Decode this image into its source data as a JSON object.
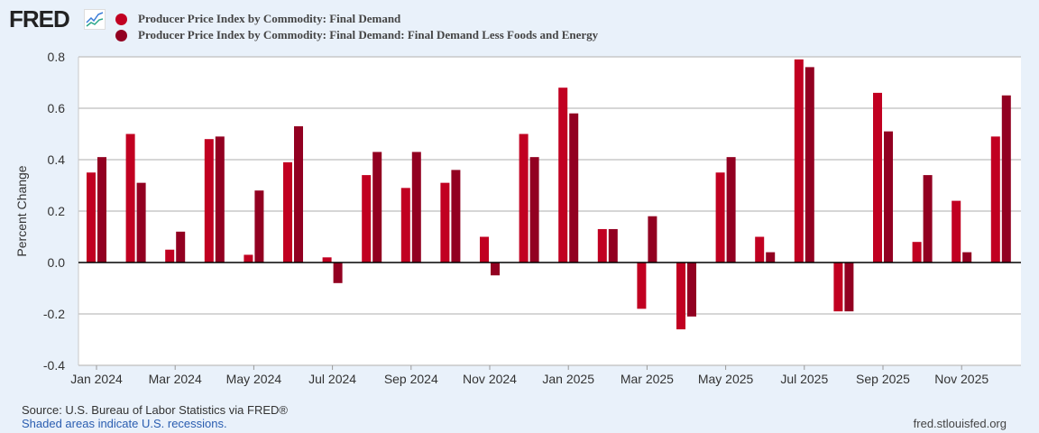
{
  "header": {
    "logo": "FRED"
  },
  "chart_data": {
    "type": "bar",
    "ylabel": "Percent Change",
    "ylim": [
      -0.4,
      0.8
    ],
    "yticks": [
      "0.8",
      "0.6",
      "0.4",
      "0.2",
      "0.0",
      "-0.2",
      "-0.4"
    ],
    "ytick_values": [
      0.8,
      0.6,
      0.4,
      0.2,
      0.0,
      -0.2,
      -0.4
    ],
    "categories": [
      "Jan 2024",
      "Feb 2024",
      "Mar 2024",
      "Apr 2024",
      "May 2024",
      "Jun 2024",
      "Jul 2024",
      "Aug 2024",
      "Sep 2024",
      "Oct 2024",
      "Nov 2024",
      "Dec 2024",
      "Jan 2025",
      "Feb 2025",
      "Mar 2025",
      "Apr 2025",
      "May 2025",
      "Jun 2025",
      "Jul 2025",
      "Aug 2025",
      "Sep 2025",
      "Oct 2025",
      "Nov 2025",
      "Dec 2025"
    ],
    "xtick_labels": [
      "Jan 2024",
      "Mar 2024",
      "May 2024",
      "Jul 2024",
      "Sep 2024",
      "Nov 2024",
      "Jan 2025",
      "Mar 2025",
      "May 2025",
      "Jul 2025",
      "Sep 2025",
      "Nov 2025"
    ],
    "series": [
      {
        "name": "Producer Price Index by Commodity: Final Demand",
        "color": "#c10021",
        "values": [
          0.35,
          0.5,
          0.05,
          0.48,
          0.03,
          0.39,
          0.02,
          0.34,
          0.29,
          0.31,
          0.1,
          0.5,
          0.68,
          0.13,
          -0.18,
          -0.26,
          0.35,
          0.1,
          0.79,
          -0.19,
          0.66,
          0.08,
          0.24,
          0.49
        ]
      },
      {
        "name": "Producer Price Index by Commodity: Final Demand: Final Demand Less Foods and Energy",
        "color": "#920021",
        "values": [
          0.41,
          0.31,
          0.12,
          0.49,
          0.28,
          0.53,
          -0.08,
          0.43,
          0.43,
          0.36,
          -0.05,
          0.41,
          0.58,
          0.13,
          0.18,
          -0.21,
          0.41,
          0.04,
          0.76,
          -0.19,
          0.51,
          0.34,
          0.04,
          0.65
        ]
      }
    ],
    "grid": true,
    "legend": "top-left"
  },
  "footer": {
    "source": "Source: U.S. Bureau of Labor Statistics via FRED®",
    "recession": "Shaded areas indicate U.S. recessions.",
    "url": "fred.stlouisfed.org"
  }
}
